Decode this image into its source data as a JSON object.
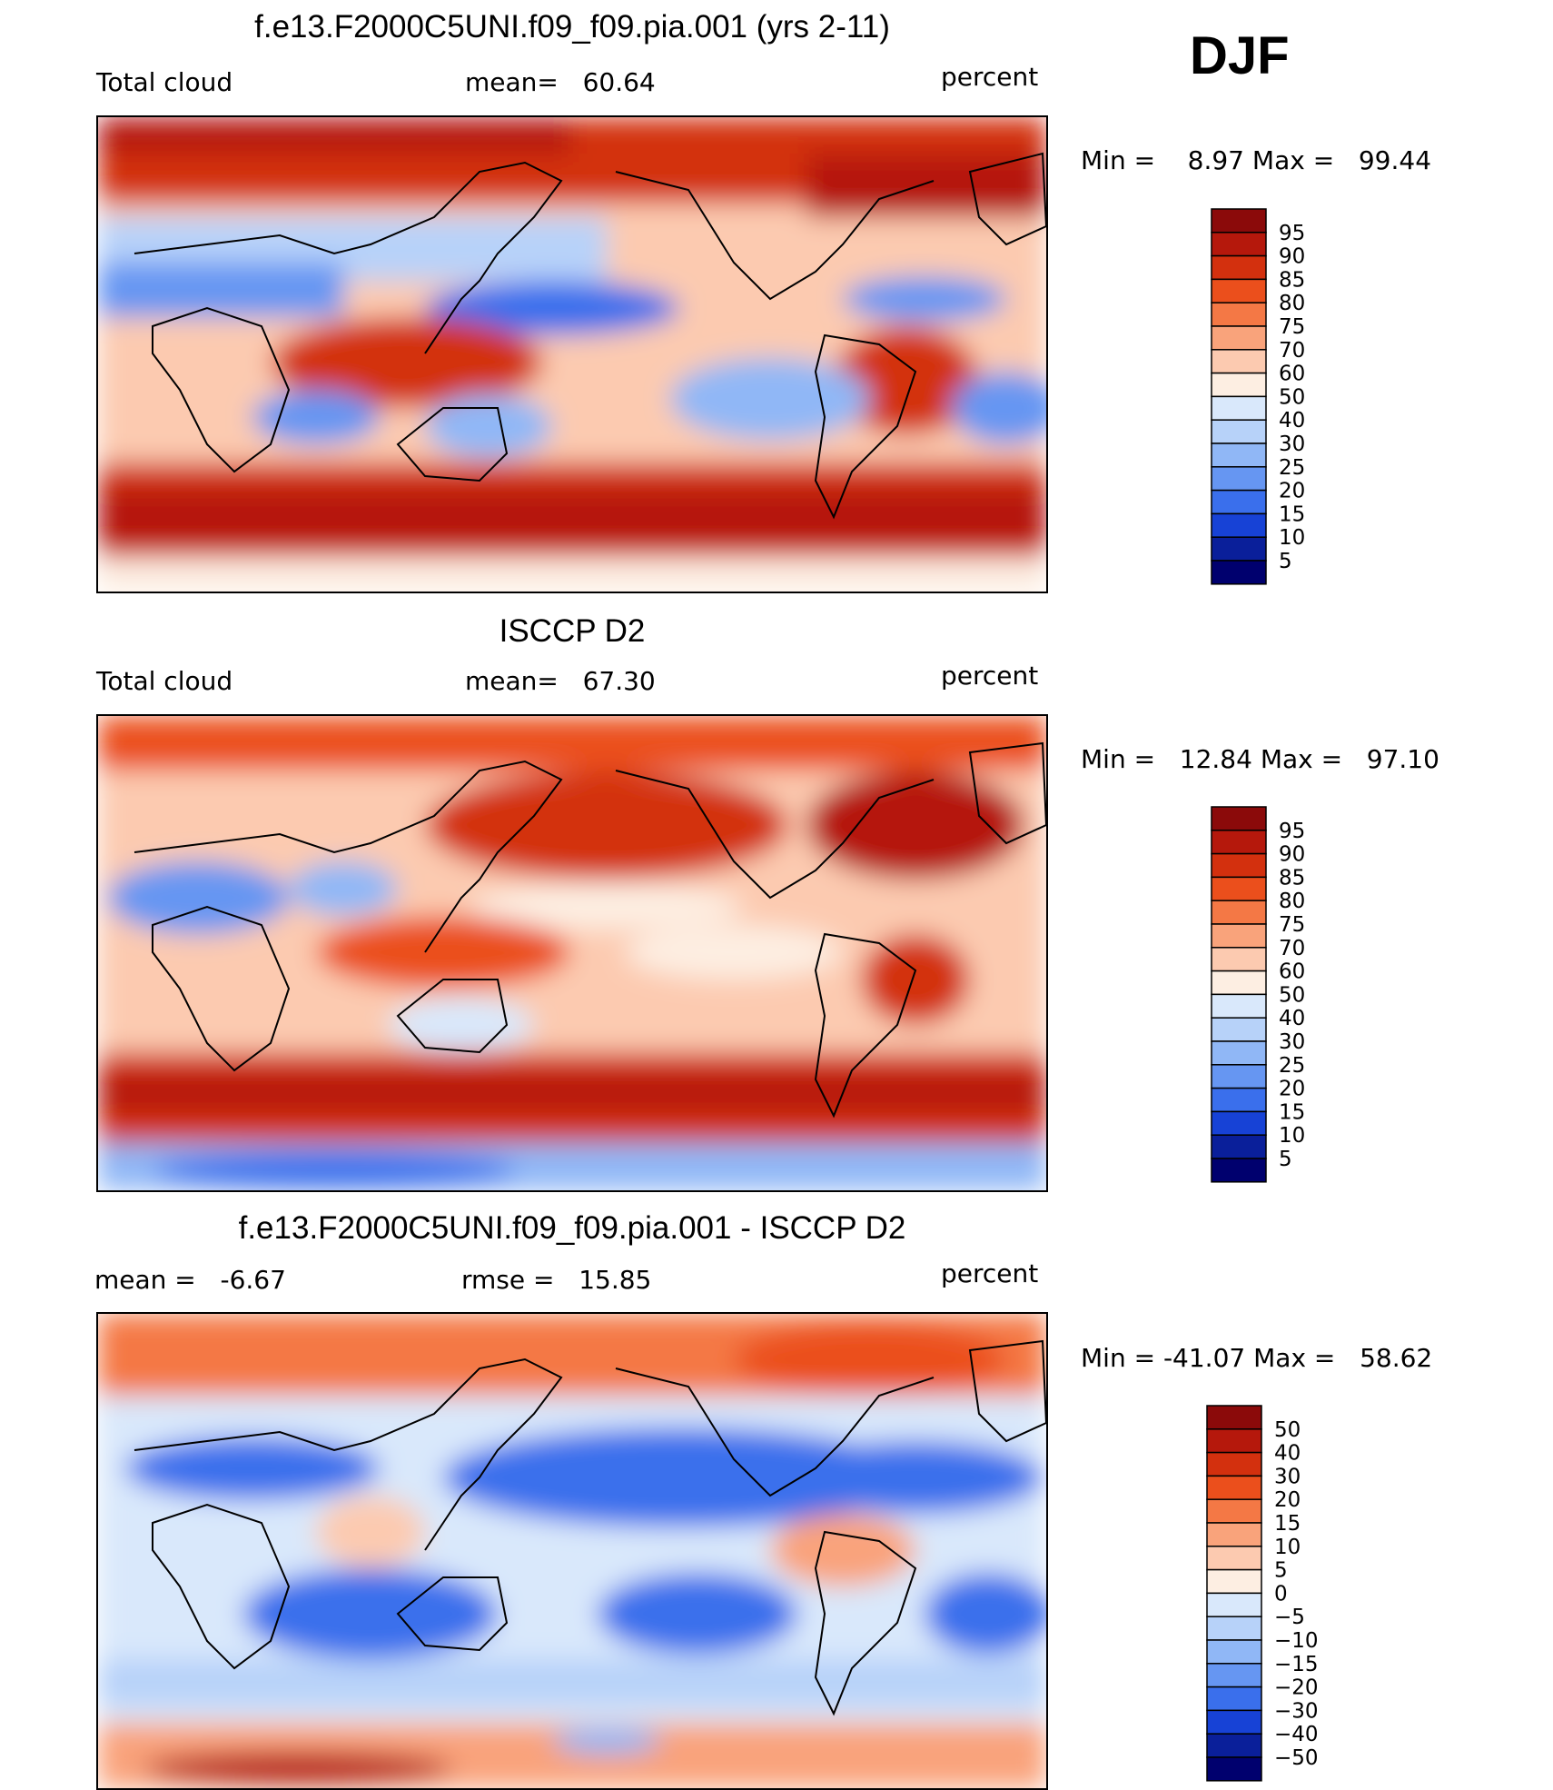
{
  "season": "DJF",
  "chart_data": [
    {
      "type": "heatmap",
      "title": "f.e13.F2000C5UNI.f09_f09.pia.001 (yrs 2-11)",
      "left_label": "Total cloud",
      "center_prefix": "mean=",
      "center_value": "60.64",
      "units": "percent",
      "min_label": "Min =",
      "min_value": "8.97",
      "max_label": "Max =",
      "max_value": "99.44",
      "colorbar_levels": [
        "95",
        "90",
        "85",
        "80",
        "75",
        "70",
        "60",
        "50",
        "40",
        "30",
        "25",
        "20",
        "15",
        "10",
        "5"
      ],
      "colorbar_colors": [
        "#8b0a0a",
        "#b5180c",
        "#d3300e",
        "#eb4f1c",
        "#f47845",
        "#f9a37b",
        "#fccab0",
        "#fdeee2",
        "#d9e8fb",
        "#b7d2f9",
        "#90b7f6",
        "#6696f2",
        "#3a6fec",
        "#1742d6",
        "#0a1f9a",
        "#00006e"
      ]
    },
    {
      "type": "heatmap",
      "title": "ISCCP D2",
      "left_label": "Total cloud",
      "center_prefix": "mean=",
      "center_value": "67.30",
      "units": "percent",
      "min_label": "Min =",
      "min_value": "12.84",
      "max_label": "Max =",
      "max_value": "97.10",
      "colorbar_levels": [
        "95",
        "90",
        "85",
        "80",
        "75",
        "70",
        "60",
        "50",
        "40",
        "30",
        "25",
        "20",
        "15",
        "10",
        "5"
      ],
      "colorbar_colors": [
        "#8b0a0a",
        "#b5180c",
        "#d3300e",
        "#eb4f1c",
        "#f47845",
        "#f9a37b",
        "#fccab0",
        "#fdeee2",
        "#d9e8fb",
        "#b7d2f9",
        "#90b7f6",
        "#6696f2",
        "#3a6fec",
        "#1742d6",
        "#0a1f9a",
        "#00006e"
      ]
    },
    {
      "type": "heatmap",
      "title": "f.e13.F2000C5UNI.f09_f09.pia.001 - ISCCP D2",
      "left_label": "mean =",
      "left_value": "-6.67",
      "center_prefix": "rmse =",
      "center_value": "15.85",
      "units": "percent",
      "min_label": "Min =",
      "min_value": "-41.07",
      "max_label": "Max =",
      "max_value": "58.62",
      "colorbar_levels": [
        "50",
        "40",
        "30",
        "20",
        "15",
        "10",
        "5",
        "0",
        "-5",
        "-10",
        "-15",
        "-20",
        "-30",
        "-40",
        "-50"
      ],
      "colorbar_colors": [
        "#8b0a0a",
        "#b5180c",
        "#d3300e",
        "#eb4f1c",
        "#f47845",
        "#f9a37b",
        "#fccab0",
        "#fdeee2",
        "#d9e8fb",
        "#b7d2f9",
        "#90b7f6",
        "#6696f2",
        "#3a6fec",
        "#1742d6",
        "#0a1f9a",
        "#00006e"
      ]
    }
  ]
}
